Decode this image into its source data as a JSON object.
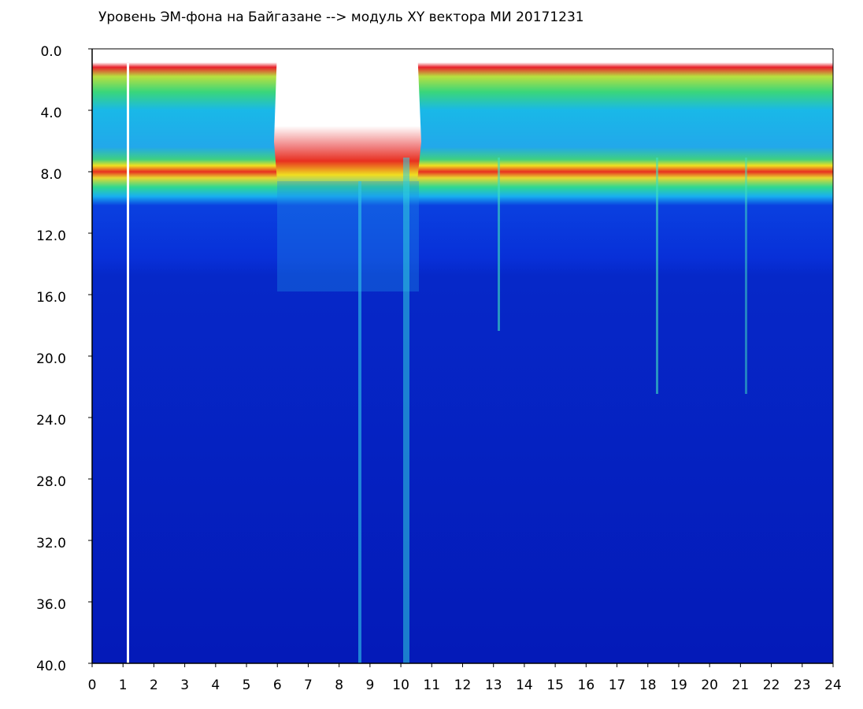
{
  "chart_data": {
    "type": "spectrogram",
    "title": "Уровень ЭМ-фона на Байгазане  -->  модуль XY вектора МИ  20171231",
    "xlim": [
      0,
      24
    ],
    "xticks": [
      0,
      1,
      2,
      3,
      4,
      5,
      6,
      7,
      8,
      9,
      10,
      11,
      12,
      13,
      14,
      15,
      16,
      17,
      18,
      19,
      20,
      21,
      22,
      23,
      24
    ],
    "ylim": [
      0,
      40
    ],
    "y_inverted": true,
    "yticks": [
      {
        "value": 0,
        "label": "0.0"
      },
      {
        "value": 4,
        "label": "4.0"
      },
      {
        "value": 8,
        "label": "8.0"
      },
      {
        "value": 12,
        "label": "12.0"
      },
      {
        "value": 16,
        "label": "16.0"
      },
      {
        "value": 20,
        "label": "20.0"
      },
      {
        "value": 24,
        "label": "24.0"
      },
      {
        "value": 28,
        "label": "28.0"
      },
      {
        "value": 32,
        "label": "32.0"
      },
      {
        "value": 36,
        "label": "36.0"
      },
      {
        "value": 40,
        "label": "40.0"
      }
    ]
  }
}
